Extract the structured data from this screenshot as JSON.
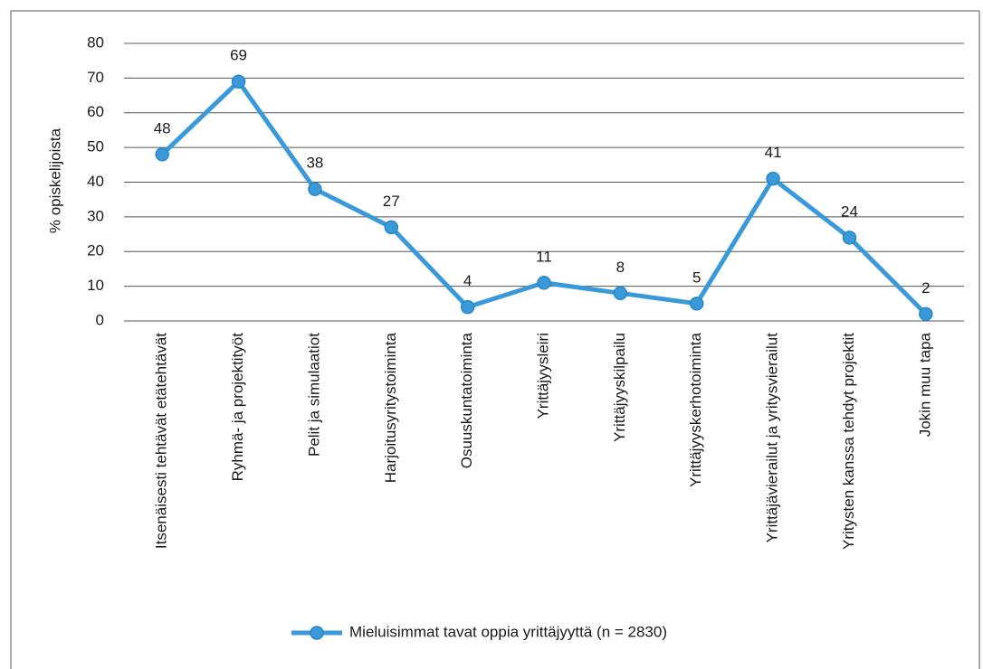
{
  "chart_data": {
    "type": "line",
    "y_label": "% opiskelijoista",
    "categories": [
      "Itsenäisesti tehtävät etätehtävät",
      "Ryhmä- ja projektityöt",
      "Pelit ja simulaatiot",
      "Harjoitusyritystoiminta",
      "Osuuskuntatoiminta",
      "Yrittäjyysleiri",
      "Yrittäjyyskilpailu",
      "Yrittäjyyskerhotoiminta",
      "Yrittäjävierailut ja yritysvierailut",
      "Yritysten kanssa tehdyt projektit",
      "Jokin muu tapa"
    ],
    "series": [
      {
        "name": "Mieluisimmat tavat oppia yrittäjyyttä (n = 2830)",
        "color": "#3a9ad9",
        "values": [
          48,
          69,
          38,
          27,
          4,
          11,
          8,
          5,
          41,
          24,
          2
        ]
      }
    ],
    "ylim": [
      0,
      80
    ],
    "yticks": [
      0,
      10,
      20,
      30,
      40,
      50,
      60,
      70,
      80
    ],
    "grid": true,
    "legend": "bottom"
  }
}
